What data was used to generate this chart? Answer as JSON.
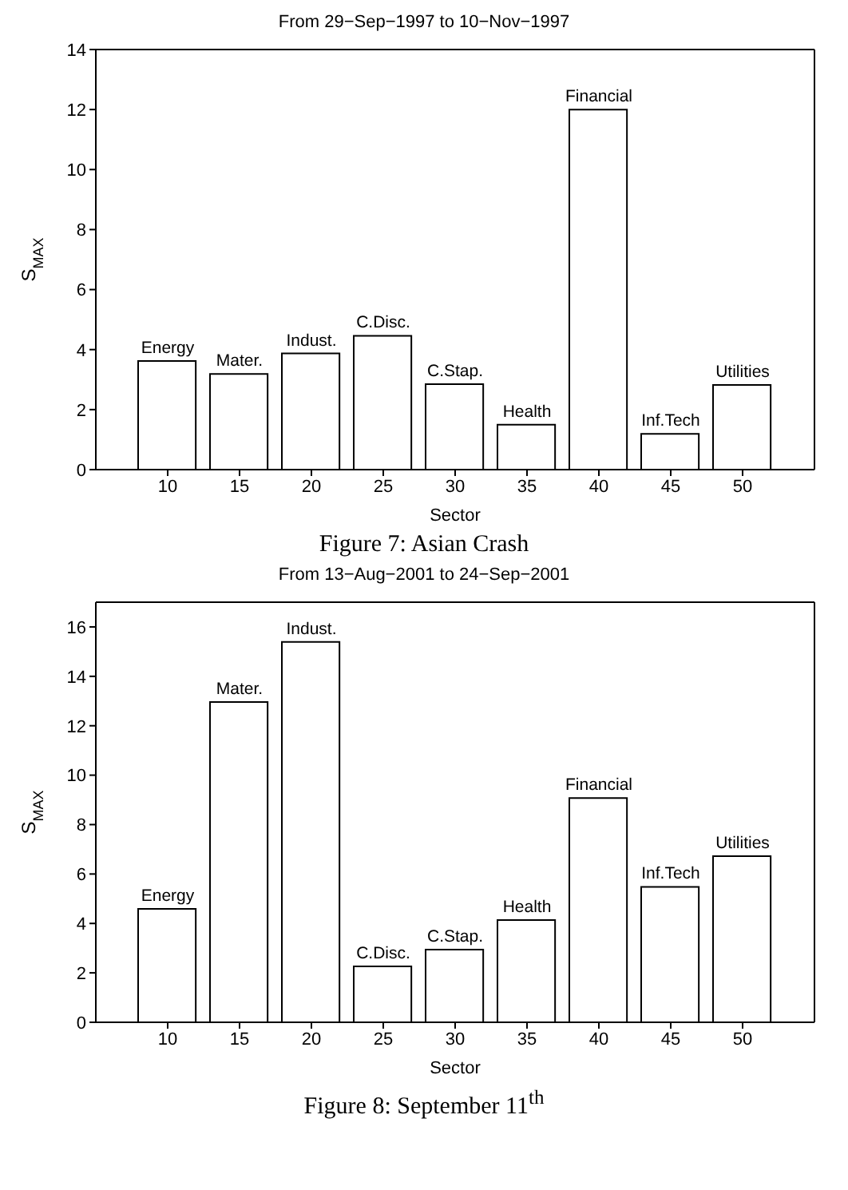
{
  "chart_data": [
    {
      "type": "bar",
      "title": "From 29−Sep−1997 to 10−Nov−1997",
      "xlabel": "Sector",
      "ylabel": "S$_{MAX}$",
      "x": [
        10,
        15,
        20,
        25,
        30,
        35,
        40,
        45,
        50
      ],
      "values": [
        3.62,
        3.19,
        3.87,
        4.46,
        2.85,
        1.5,
        12.0,
        1.19,
        2.82
      ],
      "color": "#ffffff",
      "xlim": [
        5,
        55
      ],
      "xticks": [
        10,
        15,
        20,
        25,
        30,
        35,
        40,
        45,
        50
      ],
      "ylim": [
        0,
        14
      ],
      "yticks": [
        0,
        2,
        4,
        6,
        8,
        10,
        12,
        14
      ],
      "annotations": [
        {
          "text": "Energy",
          "x": 10,
          "y": 3.62
        },
        {
          "text": "Mater.",
          "x": 15,
          "y": 3.19
        },
        {
          "text": "Indust.",
          "x": 20,
          "y": 3.87
        },
        {
          "text": "C.Disc.",
          "x": 25,
          "y": 4.46
        },
        {
          "text": "C.Stap.",
          "x": 30,
          "y": 2.85
        },
        {
          "text": "Health",
          "x": 35,
          "y": 1.5
        },
        {
          "text": "Financial",
          "x": 40,
          "y": 12.0
        },
        {
          "text": "Inf.Tech",
          "x": 45,
          "y": 1.19
        },
        {
          "text": "Utilities",
          "x": 50,
          "y": 2.82
        },
        "Figure 7: Asian Crash"
      ]
    },
    {
      "type": "bar",
      "title": "From 13−Aug−2001 to 24−Sep−2001",
      "xlabel": "Sector",
      "ylabel": "S$_{MAX}$",
      "x": [
        10,
        15,
        20,
        25,
        30,
        35,
        40,
        45,
        50
      ],
      "values": [
        4.59,
        12.96,
        15.39,
        2.26,
        2.94,
        4.14,
        9.07,
        5.48,
        6.72
      ],
      "color": "#ffffff",
      "xlim": [
        5,
        55
      ],
      "xticks": [
        10,
        15,
        20,
        25,
        30,
        35,
        40,
        45,
        50
      ],
      "ylim": [
        0,
        17
      ],
      "yticks": [
        0,
        2,
        4,
        6,
        8,
        10,
        12,
        14,
        16
      ],
      "annotations": [
        {
          "text": "Energy",
          "x": 10,
          "y": 4.59
        },
        {
          "text": "Mater.",
          "x": 15,
          "y": 12.96
        },
        {
          "text": "Indust.",
          "x": 20,
          "y": 15.39
        },
        {
          "text": "C.Disc.",
          "x": 25,
          "y": 2.26
        },
        {
          "text": "C.Stap.",
          "x": 30,
          "y": 2.94
        },
        {
          "text": "Health",
          "x": 35,
          "y": 4.14
        },
        {
          "text": "Financial",
          "x": 40,
          "y": 9.07
        },
        {
          "text": "Inf.Tech",
          "x": 45,
          "y": 5.48
        },
        {
          "text": "Utilities",
          "x": 50,
          "y": 6.72
        },
        "Figure 8: September 11$^{th}$"
      ]
    }
  ]
}
